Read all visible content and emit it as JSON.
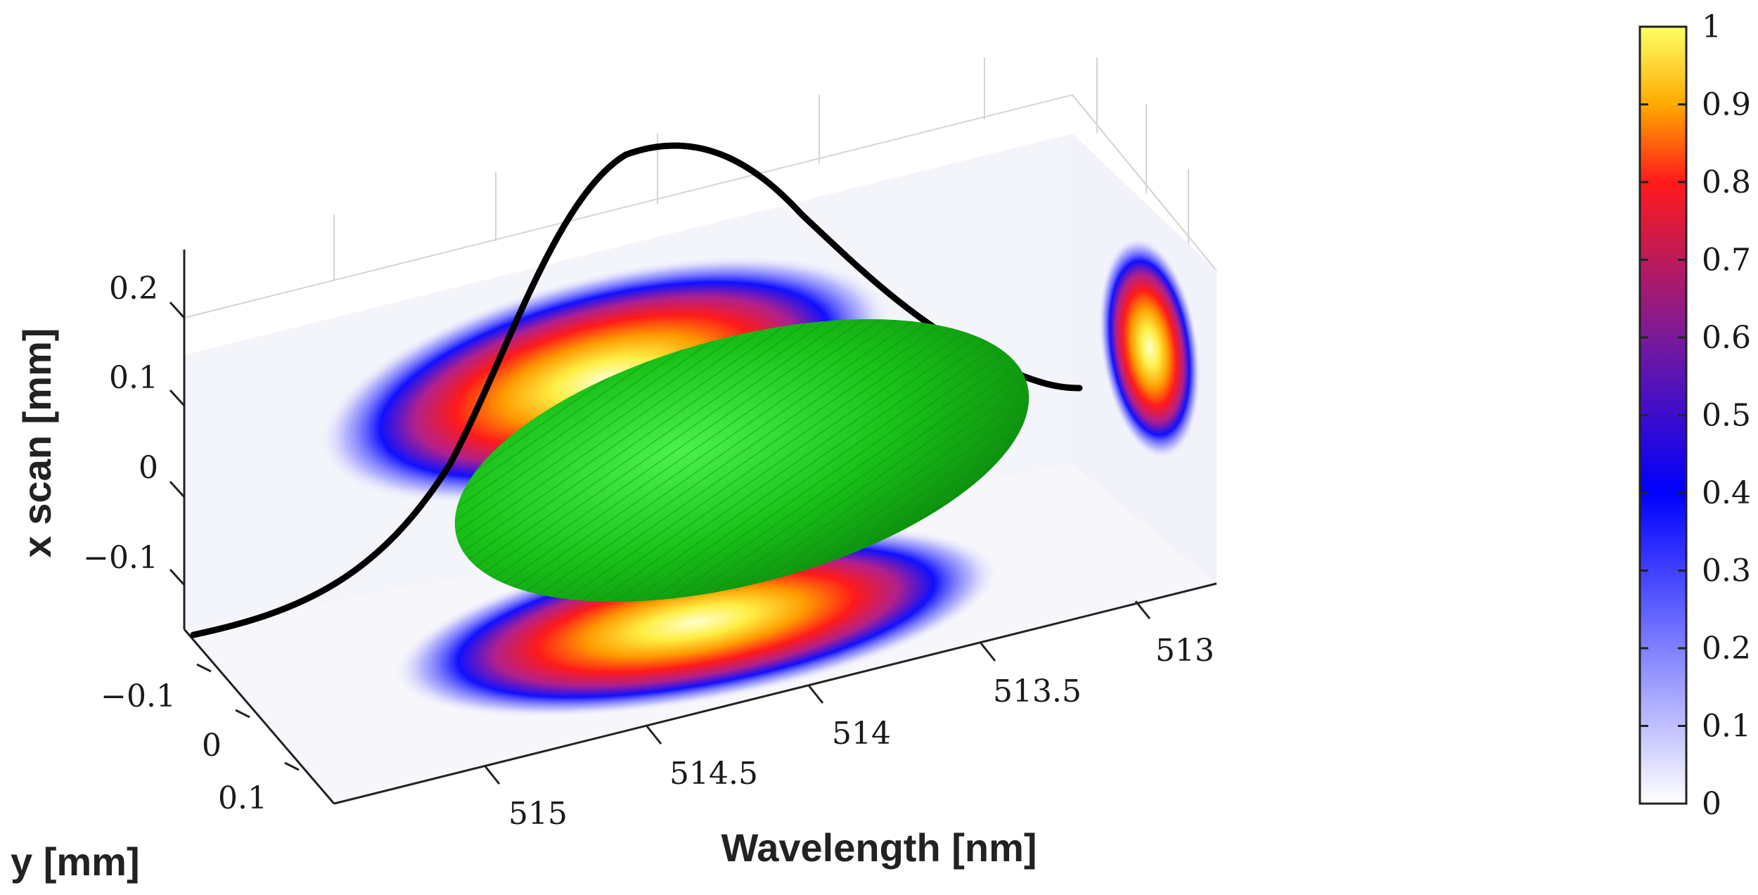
{
  "chart_data": {
    "type": "3d-surface",
    "labels": {
      "xlabel": "Wavelength [nm]",
      "ylabel": "y [mm]",
      "zlabel": "x scan [mm]"
    },
    "wavelength_ticks": [
      "515",
      "514.5",
      "514",
      "513.5",
      "513"
    ],
    "y_ticks": [
      "−0.1",
      "0",
      "0.1"
    ],
    "z_ticks": [
      "0.2",
      "0.1",
      "0",
      "−0.1"
    ],
    "colorbar_ticks": [
      "0",
      "0.1",
      "0.2",
      "0.3",
      "0.4",
      "0.5",
      "0.6",
      "0.7",
      "0.8",
      "0.9",
      "1"
    ],
    "colorbar_range": [
      0,
      1
    ],
    "colormap": [
      "#ffffff",
      "#0000ff",
      "#7a1a9a",
      "#ff1a1a",
      "#ffaa00",
      "#ffff66"
    ],
    "isosurface_color": "#1ed61e",
    "spectrum_line_color": "#000000",
    "grid": true
  }
}
